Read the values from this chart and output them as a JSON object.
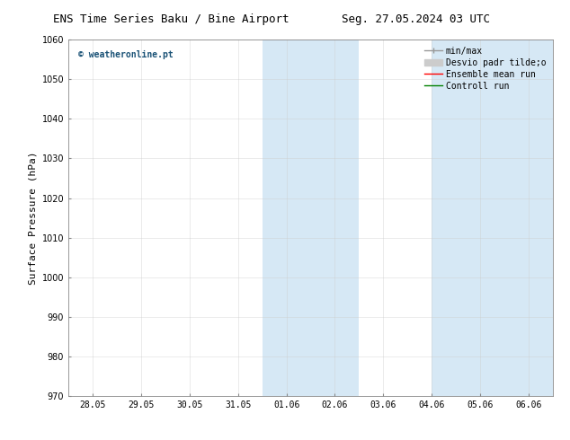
{
  "title_left": "ENS Time Series Baku / Bine Airport",
  "title_right": "Seg. 27.05.2024 03 UTC",
  "ylabel": "Surface Pressure (hPa)",
  "ylim": [
    970,
    1060
  ],
  "yticks": [
    970,
    980,
    990,
    1000,
    1010,
    1020,
    1030,
    1040,
    1050,
    1060
  ],
  "x_tick_labels": [
    "28.05",
    "29.05",
    "30.05",
    "31.05",
    "01.06",
    "02.06",
    "03.06",
    "04.06",
    "05.06",
    "06.06"
  ],
  "x_tick_positions": [
    0,
    1,
    2,
    3,
    4,
    5,
    6,
    7,
    8,
    9
  ],
  "xlim": [
    -0.5,
    9.5
  ],
  "shaded_bands": [
    {
      "x_start": 3.5,
      "x_end": 5.5
    },
    {
      "x_start": 7.0,
      "x_end": 9.5
    }
  ],
  "shaded_color": "#d6e8f5",
  "watermark_text": "© weatheronline.pt",
  "watermark_color": "#1a5276",
  "bg_color": "#ffffff",
  "grid_color": "#cccccc",
  "title_fontsize": 9,
  "axis_fontsize": 7,
  "ylabel_fontsize": 8,
  "watermark_fontsize": 7,
  "legend_fontsize": 7
}
